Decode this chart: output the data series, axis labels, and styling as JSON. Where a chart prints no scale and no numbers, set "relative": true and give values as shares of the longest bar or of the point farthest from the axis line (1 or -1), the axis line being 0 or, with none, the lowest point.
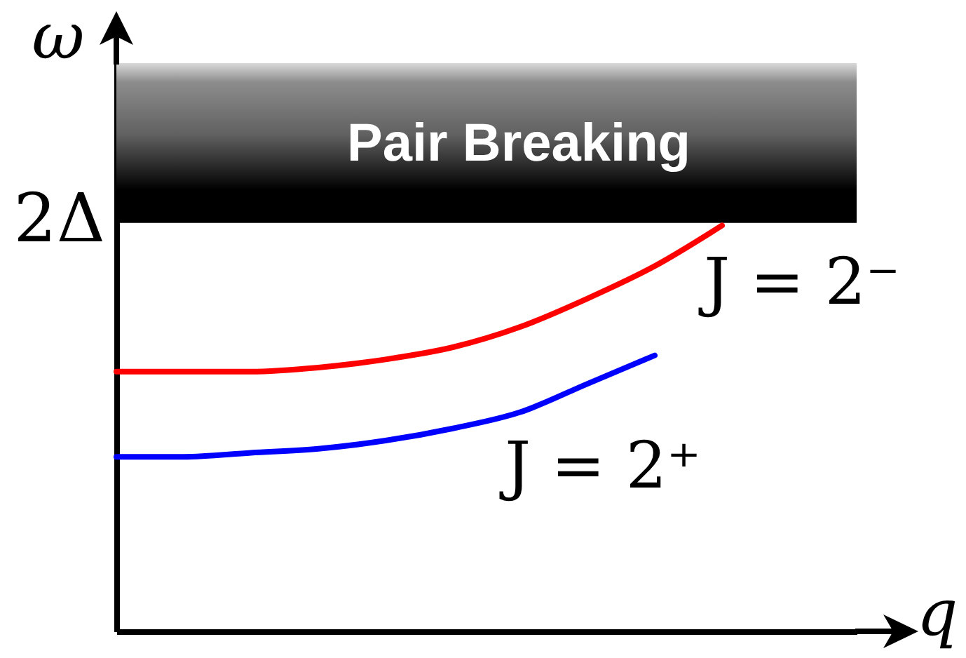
{
  "chart_data": {
    "type": "line",
    "xlabel": "q",
    "ylabel": "ω",
    "relative": true,
    "legend": false,
    "categories": [
      null,
      null,
      null,
      null,
      null,
      null,
      null,
      null,
      null,
      null,
      null,
      null
    ],
    "series": [
      {
        "name": "J = 2⁻",
        "color": "#ff0000",
        "values": [
          0.64,
          0.64,
          0.64,
          0.65,
          0.67,
          0.7,
          0.75,
          0.82,
          0.9,
          1,
          null,
          null
        ]
      },
      {
        "name": "J = 2⁺",
        "color": "#0000ff",
        "values": [
          0.43,
          0.43,
          0.44,
          0.45,
          0.47,
          0.5,
          0.54,
          0.61,
          0.68,
          null,
          null,
          null
        ]
      }
    ],
    "bands": [
      {
        "axis": "y",
        "from": 1.01,
        "to": 1.4,
        "label": "Pair Breaking",
        "color": "#000000"
      }
    ],
    "ref_lines": [
      {
        "axis": "y",
        "value": 1.01,
        "label": "2Δ",
        "color": "#000000"
      }
    ]
  }
}
